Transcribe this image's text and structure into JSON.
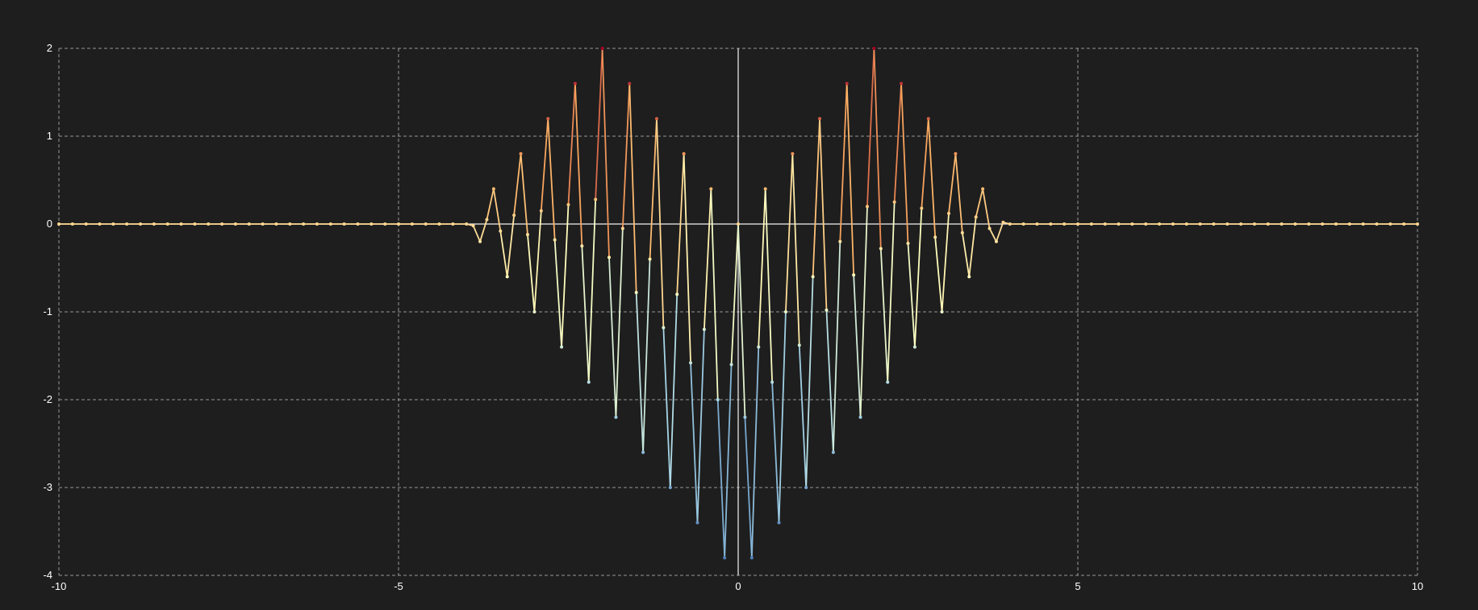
{
  "chart_data": {
    "type": "line",
    "title": "",
    "xlabel": "",
    "ylabel": "",
    "xlim": [
      -10,
      10
    ],
    "ylim": [
      -4,
      2
    ],
    "grid": true,
    "x_ticks": [
      -10,
      -5,
      0,
      5,
      10
    ],
    "y_ticks": [
      -4,
      -3,
      -2,
      -1,
      0,
      1,
      2
    ],
    "x_tick_labels": [
      "-10",
      "-5",
      "0",
      "5",
      "10"
    ],
    "y_tick_labels": [
      "-4",
      "-3",
      "-2",
      "-1",
      "0",
      "1",
      "2"
    ],
    "colormap": {
      "name": "red-yellow-blue by y value",
      "low_color": "#4575b4",
      "mid_low_color": "#abd9e9",
      "mid_color": "#ffffbf",
      "mid_high_color": "#fdae61",
      "high_color": "#a50026"
    },
    "background_color": "#1e1e1e",
    "series": [
      {
        "x": [
          -10.0,
          -9.8,
          -9.6,
          -9.4,
          -9.2,
          -9.0,
          -8.8,
          -8.6,
          -8.4,
          -8.2,
          -8.0,
          -7.8,
          -7.6,
          -7.4,
          -7.2,
          -7.0,
          -6.8,
          -6.6,
          -6.4,
          -6.2,
          -6.0,
          -5.8,
          -5.6,
          -5.4,
          -5.2,
          -5.0,
          -4.8,
          -4.6,
          -4.4,
          -4.2,
          -4.0,
          -3.9,
          -3.8,
          -3.7,
          -3.6,
          -3.5,
          -3.4,
          -3.3,
          -3.2,
          -3.1,
          -3.0,
          -2.9,
          -2.8,
          -2.7,
          -2.6,
          -2.5,
          -2.4,
          -2.3,
          -2.2,
          -2.1,
          -2.0,
          -1.9,
          -1.8,
          -1.7,
          -1.6,
          -1.5,
          -1.4,
          -1.3,
          -1.2,
          -1.1,
          -1.0,
          -0.9,
          -0.8,
          -0.7,
          -0.6,
          -0.5,
          -0.4,
          -0.3,
          -0.2,
          -0.1,
          0.0,
          0.1,
          0.2,
          0.3,
          0.4,
          0.5,
          0.6,
          0.7,
          0.8,
          0.9,
          1.0,
          1.1,
          1.2,
          1.3,
          1.4,
          1.5,
          1.6,
          1.7,
          1.8,
          1.9,
          2.0,
          2.1,
          2.2,
          2.3,
          2.4,
          2.5,
          2.6,
          2.7,
          2.8,
          2.9,
          3.0,
          3.1,
          3.2,
          3.3,
          3.4,
          3.5,
          3.6,
          3.7,
          3.8,
          3.9,
          4.0,
          4.2,
          4.4,
          4.6,
          4.8,
          5.0,
          5.2,
          5.4,
          5.6,
          5.8,
          6.0,
          6.2,
          6.4,
          6.6,
          6.8,
          7.0,
          7.2,
          7.4,
          7.6,
          7.8,
          8.0,
          8.2,
          8.4,
          8.6,
          8.8,
          9.0,
          9.2,
          9.4,
          9.6,
          9.8,
          10.0
        ],
        "y": [
          0,
          0,
          0,
          0,
          0,
          0,
          0,
          0,
          0,
          0,
          0,
          0,
          0,
          0,
          0,
          0,
          0,
          0,
          0,
          0,
          0,
          0,
          0,
          0,
          0,
          0,
          0,
          0,
          0,
          0,
          0,
          -0.02,
          -0.2,
          0.05,
          0.4,
          -0.08,
          -0.6,
          0.1,
          0.8,
          -0.12,
          -1.0,
          0.15,
          1.2,
          -0.18,
          -1.4,
          0.22,
          1.6,
          -0.25,
          -1.8,
          0.28,
          2.0,
          -0.38,
          -2.2,
          -0.05,
          1.6,
          -0.78,
          -2.6,
          -0.4,
          1.2,
          -1.18,
          -3.0,
          -0.8,
          0.8,
          -1.58,
          -3.4,
          -1.2,
          0.4,
          -2.0,
          -3.8,
          -1.6,
          0.0,
          -2.2,
          -3.8,
          -1.4,
          0.4,
          -1.8,
          -3.4,
          -1.0,
          0.8,
          -1.38,
          -3.0,
          -0.6,
          1.2,
          -0.98,
          -2.6,
          -0.2,
          1.6,
          -0.58,
          -2.2,
          0.2,
          2.0,
          -0.28,
          -1.8,
          0.25,
          1.6,
          -0.22,
          -1.4,
          0.18,
          1.2,
          -0.15,
          -1.0,
          0.12,
          0.8,
          -0.1,
          -0.6,
          0.08,
          0.4,
          -0.05,
          -0.2,
          0.02,
          0,
          0,
          0,
          0,
          0,
          0,
          0,
          0,
          0,
          0,
          0,
          0,
          0,
          0,
          0,
          0,
          0,
          0,
          0,
          0,
          0,
          0,
          0,
          0,
          0,
          0,
          0,
          0,
          0,
          0,
          0
        ]
      }
    ]
  }
}
